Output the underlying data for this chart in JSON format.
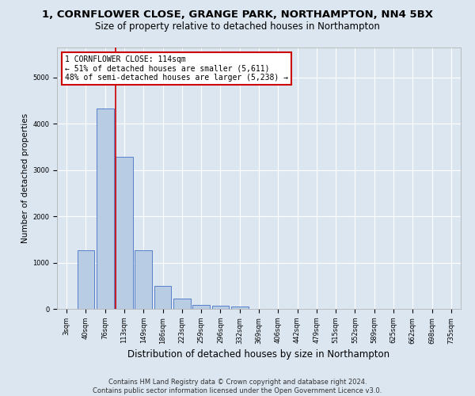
{
  "title": "1, CORNFLOWER CLOSE, GRANGE PARK, NORTHAMPTON, NN4 5BX",
  "subtitle": "Size of property relative to detached houses in Northampton",
  "xlabel": "Distribution of detached houses by size in Northampton",
  "ylabel": "Number of detached properties",
  "footer_line1": "Contains HM Land Registry data © Crown copyright and database right 2024.",
  "footer_line2": "Contains public sector information licensed under the Open Government Licence v3.0.",
  "bin_labels": [
    "3sqm",
    "40sqm",
    "76sqm",
    "113sqm",
    "149sqm",
    "186sqm",
    "223sqm",
    "259sqm",
    "296sqm",
    "332sqm",
    "369sqm",
    "406sqm",
    "442sqm",
    "479sqm",
    "515sqm",
    "552sqm",
    "589sqm",
    "625sqm",
    "662sqm",
    "698sqm",
    "735sqm"
  ],
  "bar_values": [
    0,
    1260,
    4330,
    3290,
    1270,
    490,
    215,
    90,
    60,
    55,
    0,
    0,
    0,
    0,
    0,
    0,
    0,
    0,
    0,
    0,
    0
  ],
  "bar_color": "#b8cce4",
  "bar_edge_color": "#4472c4",
  "vline_index": 3,
  "vline_color": "#cc0000",
  "annotation_text": "1 CORNFLOWER CLOSE: 114sqm\n← 51% of detached houses are smaller (5,611)\n48% of semi-detached houses are larger (5,238) →",
  "annotation_box_facecolor": "#ffffff",
  "annotation_box_edgecolor": "#cc0000",
  "ylim": [
    0,
    5650
  ],
  "background_color": "#dce6f1",
  "grid_color": "#ffffff",
  "title_fontsize": 9.5,
  "subtitle_fontsize": 8.5,
  "ylabel_fontsize": 7.5,
  "xlabel_fontsize": 8.5,
  "tick_fontsize": 6,
  "footer_fontsize": 6,
  "annot_fontsize": 7
}
